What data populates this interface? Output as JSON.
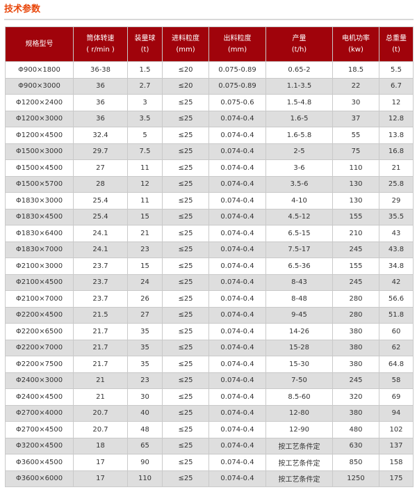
{
  "title": "技术参数",
  "colors": {
    "header_bg": "#a0030b",
    "title": "#e8460a",
    "alt_row": "#dedede"
  },
  "columns": [
    {
      "name": "规格型号",
      "unit": ""
    },
    {
      "name": "筒体转速",
      "unit": "( r/min )"
    },
    {
      "name": "装量球",
      "unit": "(t)"
    },
    {
      "name": "进料粒度",
      "unit": "(mm)"
    },
    {
      "name": "出料粒度",
      "unit": "(mm)"
    },
    {
      "name": "产量",
      "unit": "(t/h)"
    },
    {
      "name": "电机功率",
      "unit": "(kw)"
    },
    {
      "name": "总重量",
      "unit": "(t)"
    }
  ],
  "rows": [
    [
      "Φ900×1800",
      "36-38",
      "1.5",
      "≤20",
      "0.075-0.89",
      "0.65-2",
      "18.5",
      "5.5"
    ],
    [
      "Φ900×3000",
      "36",
      "2.7",
      "≤20",
      "0.075-0.89",
      "1.1-3.5",
      "22",
      "6.7"
    ],
    [
      "Φ1200×2400",
      "36",
      "3",
      "≤25",
      "0.075-0.6",
      "1.5-4.8",
      "30",
      "12"
    ],
    [
      "Φ1200×3000",
      "36",
      "3.5",
      "≤25",
      "0.074-0.4",
      "1.6-5",
      "37",
      "12.8"
    ],
    [
      "Φ1200×4500",
      "32.4",
      "5",
      "≤25",
      "0.074-0.4",
      "1.6-5.8",
      "55",
      "13.8"
    ],
    [
      "Φ1500×3000",
      "29.7",
      "7.5",
      "≤25",
      "0.074-0.4",
      "2-5",
      "75",
      "16.8"
    ],
    [
      "Φ1500×4500",
      "27",
      "11",
      "≤25",
      "0.074-0.4",
      "3-6",
      "110",
      "21"
    ],
    [
      "Φ1500×5700",
      "28",
      "12",
      "≤25",
      "0.074-0.4",
      "3.5-6",
      "130",
      "25.8"
    ],
    [
      "Φ1830×3000",
      "25.4",
      "11",
      "≤25",
      "0.074-0.4",
      "4-10",
      "130",
      "29"
    ],
    [
      "Φ1830×4500",
      "25.4",
      "15",
      "≤25",
      "0.074-0.4",
      "4.5-12",
      "155",
      "35.5"
    ],
    [
      "Φ1830×6400",
      "24.1",
      "21",
      "≤25",
      "0.074-0.4",
      "6.5-15",
      "210",
      "43"
    ],
    [
      "Φ1830×7000",
      "24.1",
      "23",
      "≤25",
      "0.074-0.4",
      "7.5-17",
      "245",
      "43.8"
    ],
    [
      "Φ2100×3000",
      "23.7",
      "15",
      "≤25",
      "0.074-0.4",
      "6.5-36",
      "155",
      "34.8"
    ],
    [
      "Φ2100×4500",
      "23.7",
      "24",
      "≤25",
      "0.074-0.4",
      "8-43",
      "245",
      "42"
    ],
    [
      "Φ2100×7000",
      "23.7",
      "26",
      "≤25",
      "0.074-0.4",
      "8-48",
      "280",
      "56.6"
    ],
    [
      "Φ2200×4500",
      "21.5",
      "27",
      "≤25",
      "0.074-0.4",
      "9-45",
      "280",
      "51.8"
    ],
    [
      "Φ2200×6500",
      "21.7",
      "35",
      "≤25",
      "0.074-0.4",
      "14-26",
      "380",
      "60"
    ],
    [
      "Φ2200×7000",
      "21.7",
      "35",
      "≤25",
      "0.074-0.4",
      "15-28",
      "380",
      "62"
    ],
    [
      "Φ2200×7500",
      "21.7",
      "35",
      "≤25",
      "0.074-0.4",
      "15-30",
      "380",
      "64.8"
    ],
    [
      "Φ2400×3000",
      "21",
      "23",
      "≤25",
      "0.074-0.4",
      "7-50",
      "245",
      "58"
    ],
    [
      "Φ2400×4500",
      "21",
      "30",
      "≤25",
      "0.074-0.4",
      "8.5-60",
      "320",
      "69"
    ],
    [
      "Φ2700×4000",
      "20.7",
      "40",
      "≤25",
      "0.074-0.4",
      "12-80",
      "380",
      "94"
    ],
    [
      "Φ2700×4500",
      "20.7",
      "48",
      "≤25",
      "0.074-0.4",
      "12-90",
      "480",
      "102"
    ],
    [
      "Φ3200×4500",
      "18",
      "65",
      "≤25",
      "0.074-0.4",
      "按工艺条件定",
      "630",
      "137"
    ],
    [
      "Φ3600×4500",
      "17",
      "90",
      "≤25",
      "0.074-0.4",
      "按工艺条件定",
      "850",
      "158"
    ],
    [
      "Φ3600×6000",
      "17",
      "110",
      "≤25",
      "0.074-0.4",
      "按工艺条件定",
      "1250",
      "175"
    ]
  ]
}
